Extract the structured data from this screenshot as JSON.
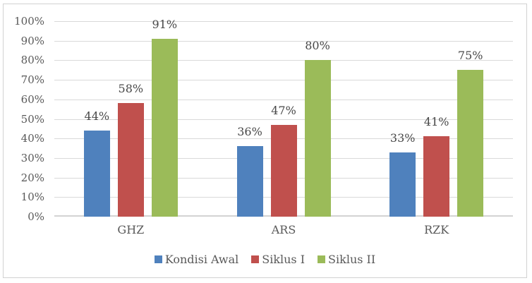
{
  "chart_data": {
    "type": "bar",
    "title": "",
    "xlabel": "",
    "ylabel": "",
    "categories": [
      "GHZ",
      "ARS",
      "RZK"
    ],
    "series": [
      {
        "name": "Kondisi Awal",
        "color": "#4F81BD",
        "values": [
          44,
          36,
          33
        ],
        "labels": [
          "44%",
          "36%",
          "33%"
        ]
      },
      {
        "name": "Siklus I",
        "color": "#C0504D",
        "values": [
          58,
          47,
          41
        ],
        "labels": [
          "58%",
          "47%",
          "41%"
        ]
      },
      {
        "name": "Siklus II",
        "color": "#9BBB59",
        "values": [
          91,
          80,
          75
        ],
        "labels": [
          "91%",
          "80%",
          "75%"
        ]
      }
    ],
    "y_axis": {
      "ticks": [
        "100%",
        "90%",
        "80%",
        "70%",
        "60%",
        "50%",
        "40%",
        "30%",
        "20%",
        "10%",
        "0%"
      ],
      "min": 0,
      "max": 100
    },
    "grid": true,
    "legend_position": "bottom"
  },
  "colors": {
    "gridline": "#D9D9D9",
    "axis_line": "#D3D3D3",
    "frame_border": "#D2D2D2",
    "tick_text": "#595959",
    "data_label_text": "#474747",
    "background": "#FFFFFF"
  }
}
